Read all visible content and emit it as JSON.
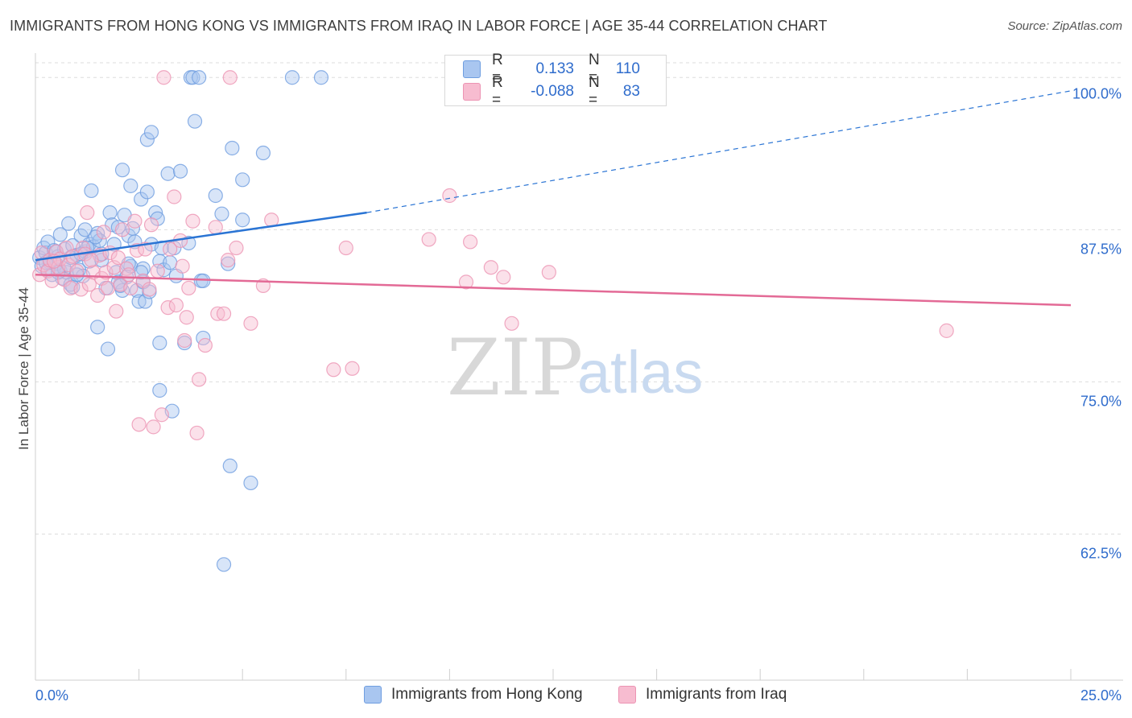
{
  "header": {
    "title": "IMMIGRANTS FROM HONG KONG VS IMMIGRANTS FROM IRAQ IN LABOR FORCE | AGE 35-44 CORRELATION CHART",
    "source": "Source: ZipAtlas.com"
  },
  "legend": {
    "rows": [
      {
        "r_label": "R =",
        "r_value": "0.133",
        "n_label": "N =",
        "n_value": "110"
      },
      {
        "r_label": "R =",
        "r_value": "-0.088",
        "n_label": "N =",
        "n_value": "83"
      }
    ]
  },
  "watermark": {
    "zip": "ZIP",
    "atlas": "atlas"
  },
  "colors": {
    "hong_kong_fill": "#a9c6f0",
    "hong_kong_stroke": "#6f9ee0",
    "hong_kong_line": "#2a74d4",
    "iraq_fill": "#f7bcd0",
    "iraq_stroke": "#ec93b3",
    "iraq_line": "#e36a96",
    "tick_text": "#2f6ccc",
    "grid": "#dddddd"
  },
  "chart_data": {
    "type": "scatter",
    "title": "IMMIGRANTS FROM HONG KONG VS IMMIGRANTS FROM IRAQ IN LABOR FORCE | AGE 35-44 CORRELATION CHART",
    "xlabel": "",
    "ylabel": "In Labor Force | Age 35-44",
    "xlim": [
      0,
      25
    ],
    "ylim": [
      50.5,
      102
    ],
    "x_tick_labels": [
      "0.0%",
      "25.0%"
    ],
    "y_ticks": [
      62.5,
      75.0,
      87.5,
      100.0
    ],
    "y_tick_labels": [
      "62.5%",
      "75.0%",
      "87.5%",
      "100.0%"
    ],
    "grid": "horizontal dashed",
    "legend_position": "top-center",
    "series": [
      {
        "name": "Immigrants from Hong Kong",
        "r": 0.133,
        "n": 110,
        "trend": {
          "x0": 0,
          "y0": 85.0,
          "x1": 8.0,
          "y1": 88.9,
          "dashed_to_x": 25,
          "dashed_to_y": 98.9
        },
        "points": [
          [
            0.1,
            85.2
          ],
          [
            0.15,
            84.5
          ],
          [
            0.2,
            86.0
          ],
          [
            0.25,
            85.6
          ],
          [
            0.3,
            84.2
          ],
          [
            0.3,
            86.5
          ],
          [
            0.35,
            85.0
          ],
          [
            0.4,
            83.8
          ],
          [
            0.45,
            85.8
          ],
          [
            0.5,
            84.7
          ],
          [
            0.55,
            85.3
          ],
          [
            0.6,
            84.1
          ],
          [
            0.6,
            87.1
          ],
          [
            0.65,
            83.5
          ],
          [
            0.7,
            85.9
          ],
          [
            0.75,
            84.0
          ],
          [
            0.8,
            88.0
          ],
          [
            0.85,
            83.0
          ],
          [
            0.9,
            86.2
          ],
          [
            0.9,
            82.8
          ],
          [
            1.0,
            85.4
          ],
          [
            1.05,
            84.2
          ],
          [
            1.1,
            87.0
          ],
          [
            1.15,
            83.7
          ],
          [
            1.2,
            85.7
          ],
          [
            1.2,
            87.5
          ],
          [
            1.3,
            86.3
          ],
          [
            1.3,
            84.9
          ],
          [
            1.35,
            90.7
          ],
          [
            1.4,
            86.1
          ],
          [
            1.5,
            87.2
          ],
          [
            1.5,
            79.5
          ],
          [
            1.55,
            86.6
          ],
          [
            1.6,
            85.0
          ],
          [
            1.7,
            82.7
          ],
          [
            1.75,
            77.7
          ],
          [
            1.8,
            88.9
          ],
          [
            1.85,
            87.9
          ],
          [
            1.9,
            86.3
          ],
          [
            1.95,
            84.0
          ],
          [
            2.0,
            83.2
          ],
          [
            2.0,
            87.7
          ],
          [
            2.1,
            92.4
          ],
          [
            2.1,
            82.5
          ],
          [
            2.15,
            88.7
          ],
          [
            2.2,
            83.6
          ],
          [
            2.25,
            87.0
          ],
          [
            2.3,
            91.1
          ],
          [
            2.3,
            84.5
          ],
          [
            2.35,
            87.6
          ],
          [
            2.4,
            86.5
          ],
          [
            2.45,
            82.5
          ],
          [
            2.5,
            81.6
          ],
          [
            2.55,
            90.0
          ],
          [
            2.6,
            84.3
          ],
          [
            2.6,
            83.2
          ],
          [
            2.65,
            81.6
          ],
          [
            2.7,
            90.6
          ],
          [
            2.7,
            94.9
          ],
          [
            2.75,
            82.4
          ],
          [
            2.8,
            86.3
          ],
          [
            2.8,
            95.5
          ],
          [
            2.9,
            88.9
          ],
          [
            2.95,
            88.4
          ],
          [
            3.0,
            84.9
          ],
          [
            3.0,
            78.2
          ],
          [
            3.0,
            74.3
          ],
          [
            3.05,
            86.0
          ],
          [
            3.1,
            84.2
          ],
          [
            3.2,
            92.1
          ],
          [
            3.25,
            84.8
          ],
          [
            3.3,
            72.6
          ],
          [
            3.35,
            86.0
          ],
          [
            3.4,
            83.7
          ],
          [
            3.5,
            92.3
          ],
          [
            3.6,
            78.2
          ],
          [
            3.7,
            86.4
          ],
          [
            3.75,
            100.0
          ],
          [
            3.8,
            100.0
          ],
          [
            3.85,
            96.4
          ],
          [
            3.95,
            100.0
          ],
          [
            4.0,
            83.3
          ],
          [
            4.05,
            83.3
          ],
          [
            4.05,
            78.6
          ],
          [
            4.35,
            90.3
          ],
          [
            4.5,
            88.8
          ],
          [
            4.65,
            84.7
          ],
          [
            4.7,
            68.1
          ],
          [
            4.75,
            94.2
          ],
          [
            5.0,
            91.6
          ],
          [
            5.0,
            88.3
          ],
          [
            5.2,
            66.7
          ],
          [
            5.5,
            93.8
          ],
          [
            6.2,
            100.0
          ],
          [
            6.9,
            100.0
          ],
          [
            4.55,
            60.0
          ],
          [
            0.5,
            85.7
          ],
          [
            0.7,
            84.3
          ],
          [
            1.0,
            83.8
          ],
          [
            1.25,
            86.0
          ],
          [
            1.6,
            85.5
          ],
          [
            2.25,
            84.7
          ],
          [
            2.55,
            84.0
          ],
          [
            2.05,
            82.9
          ],
          [
            0.35,
            84.8
          ],
          [
            0.85,
            85.2
          ],
          [
            1.45,
            86.9
          ],
          [
            1.1,
            85.5
          ],
          [
            0.25,
            84.8
          ],
          [
            0.55,
            84.0
          ]
        ]
      },
      {
        "name": "Immigrants from Iraq",
        "r": -0.088,
        "n": 83,
        "trend": {
          "x0": 0,
          "y0": 83.8,
          "x1": 25,
          "y1": 81.3
        },
        "points": [
          [
            0.1,
            83.8
          ],
          [
            0.15,
            85.6
          ],
          [
            0.2,
            84.6
          ],
          [
            0.3,
            84.1
          ],
          [
            0.35,
            85.0
          ],
          [
            0.4,
            83.3
          ],
          [
            0.5,
            85.7
          ],
          [
            0.55,
            84.4
          ],
          [
            0.6,
            85.1
          ],
          [
            0.7,
            83.4
          ],
          [
            0.75,
            86.0
          ],
          [
            0.8,
            84.6
          ],
          [
            0.85,
            82.7
          ],
          [
            0.9,
            85.3
          ],
          [
            1.0,
            84.1
          ],
          [
            1.1,
            82.6
          ],
          [
            1.15,
            86.0
          ],
          [
            1.2,
            85.5
          ],
          [
            1.25,
            88.9
          ],
          [
            1.3,
            83.0
          ],
          [
            1.4,
            84.0
          ],
          [
            1.5,
            82.1
          ],
          [
            1.55,
            85.4
          ],
          [
            1.6,
            83.5
          ],
          [
            1.65,
            87.3
          ],
          [
            1.7,
            84.0
          ],
          [
            1.75,
            82.7
          ],
          [
            1.8,
            85.6
          ],
          [
            1.9,
            84.4
          ],
          [
            1.95,
            80.8
          ],
          [
            2.0,
            85.2
          ],
          [
            2.05,
            83.0
          ],
          [
            2.1,
            87.5
          ],
          [
            2.2,
            84.3
          ],
          [
            2.25,
            83.8
          ],
          [
            2.3,
            82.7
          ],
          [
            2.4,
            88.2
          ],
          [
            2.45,
            85.8
          ],
          [
            2.5,
            71.5
          ],
          [
            2.6,
            83.3
          ],
          [
            2.65,
            85.9
          ],
          [
            2.75,
            82.6
          ],
          [
            2.8,
            87.9
          ],
          [
            2.85,
            71.3
          ],
          [
            2.95,
            84.1
          ],
          [
            3.05,
            72.3
          ],
          [
            3.2,
            81.1
          ],
          [
            3.25,
            85.9
          ],
          [
            3.35,
            90.2
          ],
          [
            3.4,
            81.3
          ],
          [
            3.5,
            86.6
          ],
          [
            3.55,
            84.5
          ],
          [
            3.6,
            78.4
          ],
          [
            3.65,
            80.3
          ],
          [
            3.7,
            82.7
          ],
          [
            3.8,
            88.2
          ],
          [
            3.9,
            70.8
          ],
          [
            3.95,
            75.2
          ],
          [
            4.1,
            78.0
          ],
          [
            4.35,
            87.7
          ],
          [
            4.4,
            80.6
          ],
          [
            4.55,
            80.6
          ],
          [
            4.65,
            85.0
          ],
          [
            4.85,
            86.0
          ],
          [
            5.2,
            79.8
          ],
          [
            5.5,
            82.9
          ],
          [
            5.7,
            88.3
          ],
          [
            3.1,
            100.0
          ],
          [
            4.7,
            100.0
          ],
          [
            7.2,
            76.0
          ],
          [
            7.65,
            76.1
          ],
          [
            7.5,
            86.0
          ],
          [
            9.5,
            86.7
          ],
          [
            10.0,
            90.3
          ],
          [
            10.4,
            83.2
          ],
          [
            10.5,
            86.5
          ],
          [
            11.0,
            84.4
          ],
          [
            11.3,
            83.6
          ],
          [
            11.5,
            79.8
          ],
          [
            12.4,
            84.0
          ],
          [
            22.0,
            79.2
          ],
          [
            1.35,
            85.0
          ],
          [
            0.45,
            84.9
          ]
        ]
      }
    ]
  },
  "bottom_legend": {
    "items": [
      {
        "label": "Immigrants from Hong Kong"
      },
      {
        "label": "Immigrants from Iraq"
      }
    ]
  }
}
